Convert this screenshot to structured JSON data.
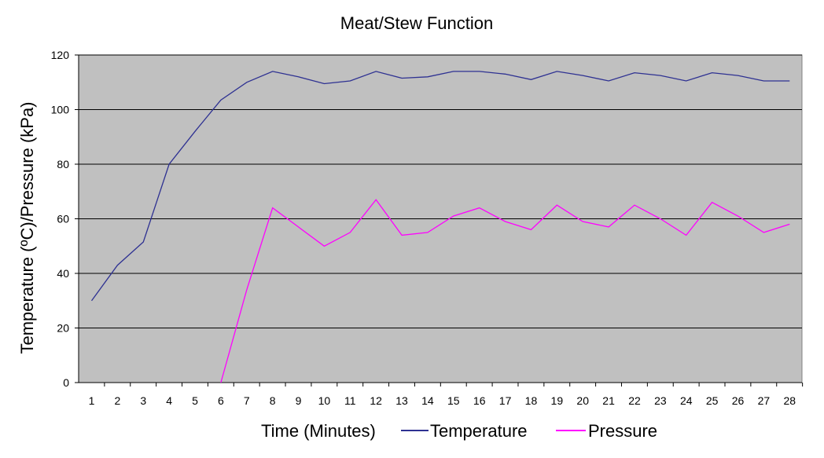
{
  "chart_data": {
    "type": "line",
    "title": "Meat/Stew Function",
    "xlabel": "Time (Minutes)",
    "ylabel": "Temperature (ºC)/Pressure (kPa)",
    "categories": [
      "1",
      "2",
      "3",
      "4",
      "5",
      "6",
      "7",
      "8",
      "9",
      "10",
      "11",
      "12",
      "13",
      "14",
      "15",
      "16",
      "17",
      "18",
      "19",
      "20",
      "21",
      "22",
      "23",
      "24",
      "25",
      "26",
      "27",
      "28"
    ],
    "ylim": [
      0,
      120
    ],
    "yticks": [
      "0",
      "20",
      "40",
      "60",
      "80",
      "100",
      "120"
    ],
    "grid": true,
    "legend_position": "bottom",
    "series": [
      {
        "name": "Temperature",
        "color": "#2e3192",
        "values": [
          30,
          43,
          51.5,
          80,
          92,
          103.5,
          110,
          114,
          112,
          109.5,
          110.5,
          114,
          111.5,
          112,
          114,
          114,
          113,
          111,
          114,
          112.5,
          110.5,
          113.5,
          112.5,
          110.5,
          113.5,
          112.5,
          110.5,
          110.5
        ]
      },
      {
        "name": "Pressure",
        "color": "#ff00ff",
        "values": [
          null,
          null,
          null,
          null,
          null,
          0,
          34,
          64,
          57,
          50,
          55,
          67,
          54,
          55,
          61,
          64,
          59,
          56,
          65,
          59,
          57,
          65,
          60,
          54,
          66,
          61,
          55,
          58
        ]
      }
    ],
    "plot_background": "#c0c0c0",
    "gridline_color": "#000000"
  }
}
